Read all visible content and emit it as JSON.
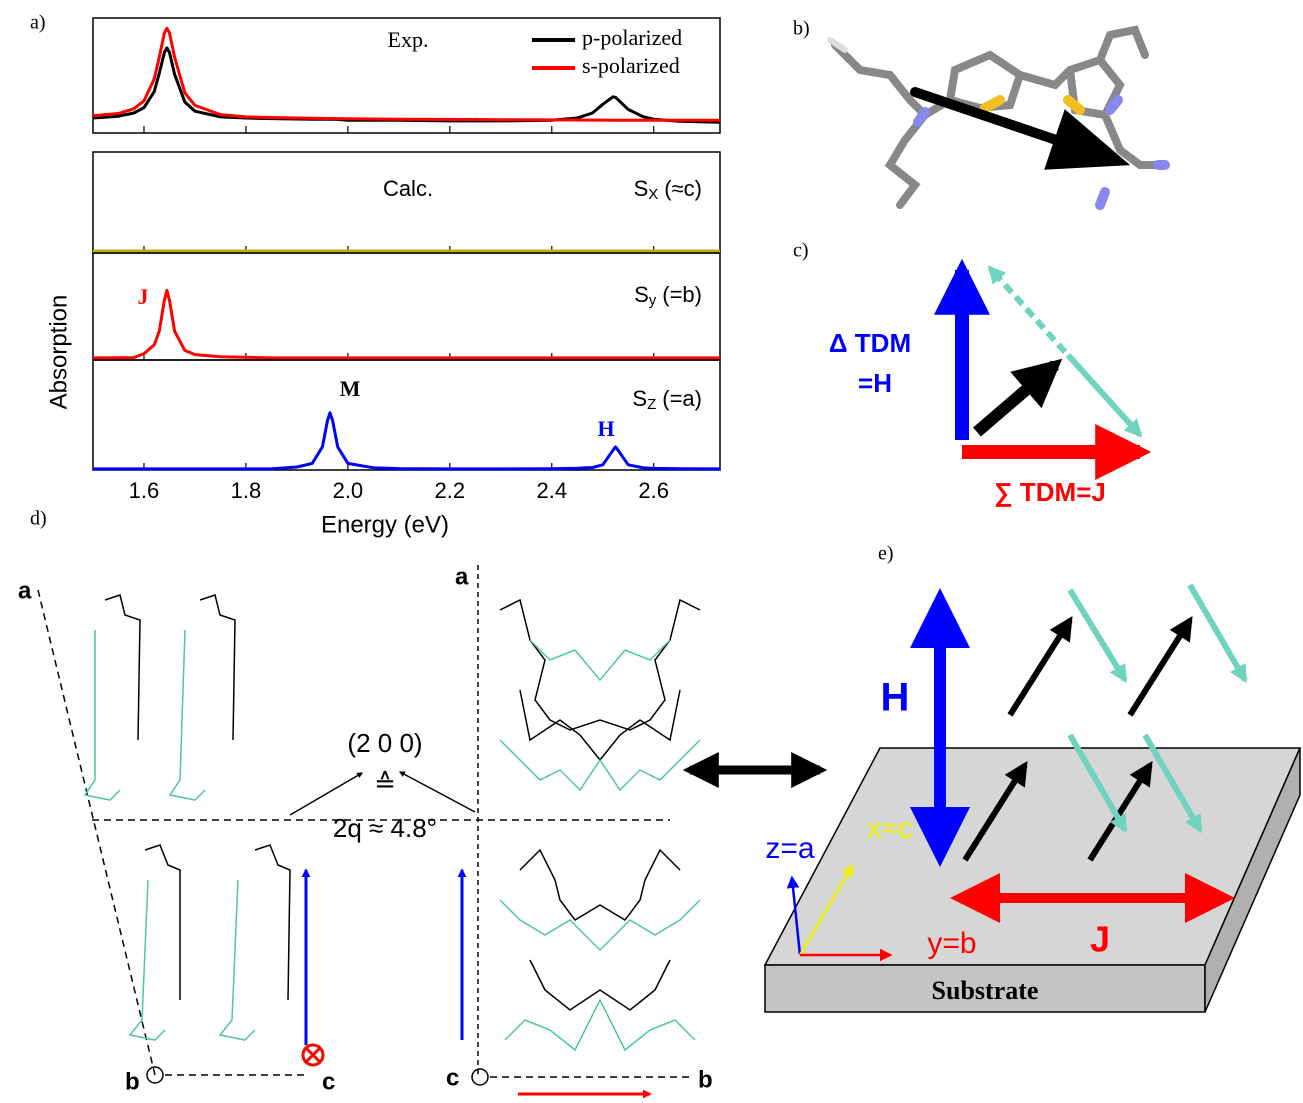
{
  "panel_labels": [
    "a)",
    "b)",
    "c)",
    "d)",
    "e)"
  ],
  "chart_data": [
    {
      "type": "line",
      "annotation": "Exp.",
      "x": [
        1.5,
        1.55,
        1.58,
        1.6,
        1.62,
        1.63,
        1.64,
        1.645,
        1.65,
        1.66,
        1.68,
        1.7,
        1.75,
        1.8,
        1.85,
        1.9,
        1.93,
        1.95,
        1.96,
        1.965,
        1.97,
        1.98,
        2.0,
        2.05,
        2.1,
        2.2,
        2.3,
        2.4,
        2.45,
        2.48,
        2.5,
        2.52,
        2.525,
        2.53,
        2.55,
        2.58,
        2.6,
        2.65,
        2.73
      ],
      "xlim": [
        1.5,
        2.73
      ],
      "ylim": [
        0,
        100
      ],
      "xticks": [
        1.6,
        1.8,
        {
          "value": 2,
          "label": "2.0"
        },
        2.2,
        2.4,
        2.6
      ],
      "legend": "top-right",
      "series": [
        {
          "name": "p-polarized",
          "color": "#000000",
          "values": [
            13,
            14.6,
            17.4,
            22,
            36,
            52,
            70,
            74,
            70,
            51,
            27,
            19,
            14,
            13,
            12.5,
            12.2,
            12,
            12,
            12,
            12,
            12,
            11.8,
            11,
            11,
            11,
            10.5,
            10.5,
            11,
            13,
            17.5,
            25,
            31.5,
            31,
            29,
            20.5,
            14,
            12,
            10.3,
            9.4
          ]
        },
        {
          "name": "s-polarized",
          "color": "#ff0000",
          "values": [
            15,
            17,
            21,
            28,
            47,
            66,
            87,
            91,
            87,
            66,
            35,
            24,
            16,
            14,
            13.5,
            13,
            12.8,
            12.7,
            12.6,
            12.6,
            12.6,
            12.5,
            12.4,
            12.2,
            12,
            11.8,
            11.6,
            11.4,
            11.3,
            11.2,
            11.2,
            11.1,
            11.1,
            11.1,
            11,
            11,
            11,
            11,
            11
          ]
        }
      ]
    },
    {
      "type": "line",
      "annotation": "Calc.",
      "x_label": "Energy (eV)",
      "y_label": "Absorption",
      "x": [
        1.5,
        1.55,
        1.58,
        1.6,
        1.62,
        1.63,
        1.64,
        1.645,
        1.65,
        1.66,
        1.68,
        1.7,
        1.75,
        1.8,
        1.85,
        1.9,
        1.93,
        1.95,
        1.96,
        1.965,
        1.97,
        1.98,
        2.0,
        2.05,
        2.1,
        2.2,
        2.3,
        2.4,
        2.45,
        2.48,
        2.5,
        2.52,
        2.525,
        2.53,
        2.55,
        2.58,
        2.6,
        2.65,
        2.73
      ],
      "xlim": [
        1.5,
        2.73
      ],
      "ylim": [
        0,
        100
      ],
      "xticks": [
        1.6,
        1.8,
        {
          "value": 2,
          "label": "2.0"
        },
        2.2,
        2.4,
        2.6
      ],
      "panels": [
        {
          "symbol": "S",
          "subscript": "X",
          "suffix": "(≈c)",
          "series": [
            {
              "color": "#b8b000",
              "values": [
                2,
                2,
                2,
                2,
                2,
                2,
                2,
                2,
                2,
                2,
                2,
                2,
                2,
                2,
                2,
                2,
                2,
                2,
                2,
                2,
                2,
                2,
                2,
                2,
                2,
                2,
                2,
                2,
                2,
                2,
                2,
                2,
                2,
                2,
                2,
                2,
                2,
                2,
                2
              ]
            }
          ]
        },
        {
          "symbol": "S",
          "subscript": "y",
          "suffix": "(=b)",
          "annotations": [
            "J"
          ],
          "series": [
            {
              "color": "#ff0000",
              "values": [
                2,
                2.1,
                2.2,
                6,
                14,
                27,
                56,
                65,
                56,
                27,
                9,
                5,
                3,
                2.5,
                2,
                2,
                2,
                2,
                2,
                2,
                2,
                2,
                2,
                2,
                2,
                2,
                2,
                2,
                2,
                2,
                2,
                2,
                2,
                2,
                2,
                2,
                2,
                2,
                2
              ]
            }
          ]
        },
        {
          "symbol": "S",
          "subscript": "Z",
          "suffix": "(=a)",
          "annotations": [
            "M",
            "H"
          ],
          "series": [
            {
              "color": "#0000ff",
              "values": [
                1,
                1,
                1,
                1,
                1,
                1,
                1,
                1,
                1,
                1,
                1,
                1,
                1,
                1,
                1,
                2.7,
                6,
                21,
                45,
                52,
                45,
                21,
                6,
                2,
                1.3,
                1,
                1,
                1.2,
                1.6,
                2.3,
                4.7,
                18,
                21,
                18,
                4.7,
                1.9,
                1.5,
                1.2,
                1
              ]
            }
          ]
        }
      ]
    }
  ],
  "diagrams": {
    "c": {
      "delta_tdm": "Δ TDM",
      "equals_h": "=H",
      "sum_tdm": "∑ TDM=J"
    },
    "d": {
      "left_axes": [
        "a",
        "b",
        "c"
      ],
      "right_axes": [
        "a",
        "c",
        "b"
      ],
      "reflection": "(2 0 0)",
      "corresponds": "≙",
      "angle": "2q ≈ 4.8°"
    },
    "e": {
      "h": "H",
      "j": "J",
      "z_axis": "z=a",
      "x_axis": "x≈c",
      "y_axis": "y=b",
      "substrate": "Substrate"
    }
  }
}
